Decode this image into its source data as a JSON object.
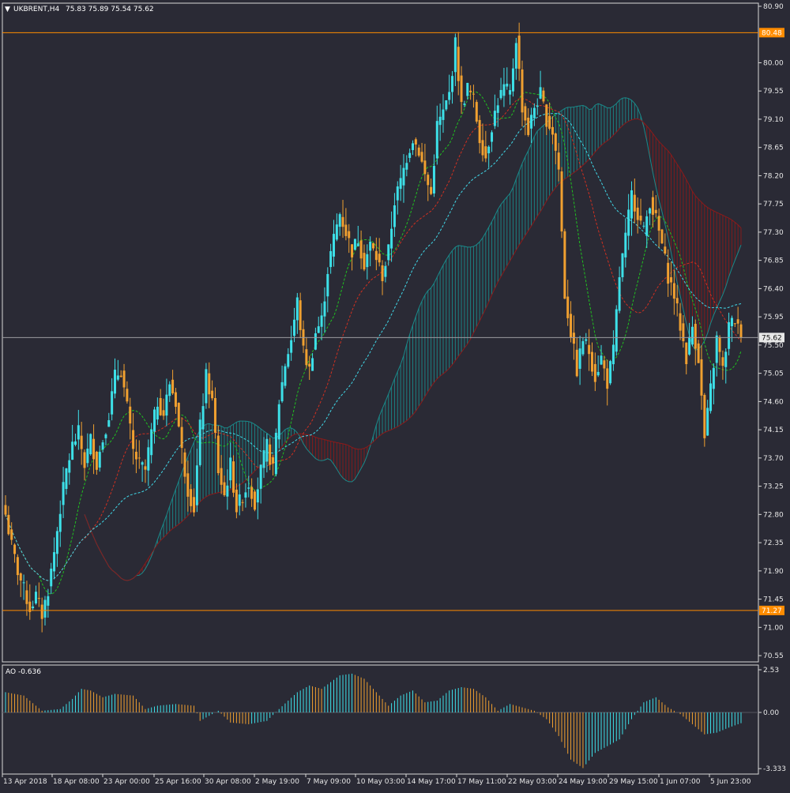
{
  "header": {
    "symbol_label": "UKBRENT,H4",
    "ohlc_text": "75.83 75.89 75.54 75.62"
  },
  "price_axis": {
    "ticks": [
      "80.90",
      "80.00",
      "79.55",
      "79.10",
      "78.65",
      "78.20",
      "77.75",
      "77.30",
      "76.85",
      "76.40",
      "75.95",
      "75.50",
      "75.05",
      "74.60",
      "74.15",
      "73.70",
      "73.25",
      "72.80",
      "72.35",
      "71.90",
      "71.45",
      "71.00",
      "70.55"
    ],
    "level_high": "80.48",
    "level_low": "71.27",
    "last_price": "75.62"
  },
  "ao_panel": {
    "label": "AO -0.636",
    "ticks": [
      "2.53",
      "0.00",
      "-3.333"
    ]
  },
  "time_axis": {
    "labels": [
      "13 Apr 2018",
      "18 Apr 08:00",
      "23 Apr 00:00",
      "25 Apr 16:00",
      "30 Apr 08:00",
      "2 May 19:00",
      "7 May 09:00",
      "10 May 03:00",
      "14 May 17:00",
      "17 May 11:00",
      "22 May 03:00",
      "24 May 19:00",
      "29 May 15:00",
      "1 Jun 07:00",
      "5 Jun 23:00"
    ]
  },
  "colors": {
    "background": "#2a2a35",
    "bull": "#3de0e8",
    "bear": "#f0a030",
    "level_line": "#ff8c00",
    "cloud_bull": "#1a8a8a",
    "cloud_bear": "#8b1a1a",
    "ma_green": "#20c020",
    "ma_red": "#d03020",
    "ma_cyan": "#40d8e8"
  },
  "chart_data": {
    "type": "candlestick",
    "symbol": "UKBRENT",
    "timeframe": "H4",
    "ylim": [
      70.45,
      80.95
    ],
    "price_anchors": [
      [
        0,
        72.8
      ],
      [
        2,
        72.3
      ],
      [
        4,
        71.9
      ],
      [
        6,
        71.6
      ],
      [
        8,
        71.3
      ],
      [
        10,
        71.5
      ],
      [
        12,
        71.2
      ],
      [
        14,
        71.6
      ],
      [
        16,
        72.2
      ],
      [
        18,
        72.9
      ],
      [
        20,
        73.5
      ],
      [
        22,
        73.9
      ],
      [
        24,
        74.1
      ],
      [
        26,
        73.6
      ],
      [
        28,
        74.0
      ],
      [
        30,
        73.6
      ],
      [
        32,
        74.0
      ],
      [
        34,
        74.4
      ],
      [
        36,
        75.0
      ],
      [
        38,
        75.1
      ],
      [
        40,
        74.5
      ],
      [
        42,
        73.8
      ],
      [
        44,
        73.6
      ],
      [
        46,
        73.5
      ],
      [
        48,
        74.1
      ],
      [
        50,
        74.6
      ],
      [
        52,
        74.4
      ],
      [
        54,
        74.9
      ],
      [
        56,
        74.6
      ],
      [
        58,
        73.8
      ],
      [
        60,
        73.2
      ],
      [
        62,
        72.9
      ],
      [
        64,
        74.2
      ],
      [
        66,
        75.0
      ],
      [
        68,
        74.6
      ],
      [
        70,
        73.5
      ],
      [
        72,
        73.1
      ],
      [
        74,
        73.6
      ],
      [
        76,
        72.9
      ],
      [
        78,
        73.1
      ],
      [
        80,
        73.3
      ],
      [
        82,
        73.0
      ],
      [
        84,
        73.5
      ],
      [
        86,
        73.9
      ],
      [
        88,
        73.5
      ],
      [
        90,
        74.6
      ],
      [
        92,
        75.2
      ],
      [
        94,
        75.6
      ],
      [
        96,
        76.2
      ],
      [
        98,
        75.4
      ],
      [
        100,
        75.1
      ],
      [
        102,
        75.7
      ],
      [
        104,
        75.9
      ],
      [
        106,
        76.7
      ],
      [
        108,
        77.2
      ],
      [
        110,
        77.6
      ],
      [
        112,
        77.3
      ],
      [
        114,
        77.0
      ],
      [
        116,
        77.2
      ],
      [
        118,
        76.8
      ],
      [
        120,
        77.1
      ],
      [
        122,
        76.9
      ],
      [
        124,
        76.6
      ],
      [
        126,
        77.0
      ],
      [
        128,
        77.8
      ],
      [
        130,
        78.1
      ],
      [
        132,
        78.5
      ],
      [
        134,
        78.8
      ],
      [
        136,
        78.6
      ],
      [
        138,
        78.2
      ],
      [
        140,
        77.9
      ],
      [
        142,
        79.0
      ],
      [
        144,
        79.2
      ],
      [
        146,
        79.5
      ],
      [
        148,
        80.3
      ],
      [
        150,
        79.3
      ],
      [
        152,
        79.6
      ],
      [
        154,
        79.4
      ],
      [
        156,
        78.8
      ],
      [
        158,
        78.5
      ],
      [
        160,
        79.0
      ],
      [
        162,
        79.4
      ],
      [
        164,
        79.6
      ],
      [
        166,
        79.5
      ],
      [
        168,
        80.4
      ],
      [
        170,
        79.3
      ],
      [
        172,
        78.9
      ],
      [
        174,
        79.3
      ],
      [
        176,
        79.5
      ],
      [
        178,
        79.1
      ],
      [
        180,
        78.9
      ],
      [
        182,
        78.3
      ],
      [
        184,
        76.3
      ],
      [
        186,
        75.7
      ],
      [
        188,
        75.1
      ],
      [
        190,
        75.6
      ],
      [
        192,
        75.4
      ],
      [
        194,
        75.0
      ],
      [
        196,
        75.3
      ],
      [
        198,
        74.9
      ],
      [
        200,
        75.4
      ],
      [
        202,
        76.6
      ],
      [
        204,
        77.2
      ],
      [
        206,
        77.9
      ],
      [
        208,
        77.6
      ],
      [
        210,
        77.3
      ],
      [
        212,
        77.8
      ],
      [
        214,
        77.5
      ],
      [
        216,
        77.1
      ],
      [
        218,
        76.6
      ],
      [
        220,
        76.3
      ],
      [
        222,
        75.8
      ],
      [
        224,
        75.3
      ],
      [
        226,
        75.8
      ],
      [
        228,
        75.3
      ],
      [
        230,
        74.0
      ],
      [
        232,
        74.8
      ],
      [
        234,
        75.6
      ],
      [
        236,
        75.1
      ],
      [
        238,
        75.8
      ],
      [
        240,
        75.9
      ],
      [
        242,
        75.62
      ]
    ],
    "price_levels": [
      80.48,
      71.27
    ],
    "last_price": 75.62,
    "indicator": "Awesome Oscillator",
    "ao_value": -0.636,
    "ao_ylim": [
      -3.333,
      2.53
    ],
    "ao_anchors": [
      [
        0,
        1.2
      ],
      [
        6,
        1.0
      ],
      [
        12,
        0.1
      ],
      [
        18,
        0.2
      ],
      [
        22,
        0.8
      ],
      [
        25,
        1.4
      ],
      [
        28,
        1.3
      ],
      [
        32,
        0.9
      ],
      [
        36,
        1.1
      ],
      [
        42,
        1.0
      ],
      [
        46,
        0.2
      ],
      [
        50,
        0.4
      ],
      [
        56,
        0.5
      ],
      [
        62,
        0.4
      ],
      [
        64,
        -0.5
      ],
      [
        70,
        0.1
      ],
      [
        74,
        -0.6
      ],
      [
        80,
        -0.7
      ],
      [
        86,
        -0.5
      ],
      [
        90,
        0.2
      ],
      [
        96,
        1.2
      ],
      [
        100,
        1.6
      ],
      [
        104,
        1.4
      ],
      [
        110,
        2.2
      ],
      [
        114,
        2.3
      ],
      [
        118,
        2.0
      ],
      [
        122,
        1.2
      ],
      [
        126,
        0.4
      ],
      [
        130,
        1.0
      ],
      [
        134,
        1.3
      ],
      [
        138,
        0.6
      ],
      [
        142,
        0.7
      ],
      [
        146,
        1.3
      ],
      [
        150,
        1.5
      ],
      [
        154,
        1.4
      ],
      [
        158,
        0.9
      ],
      [
        162,
        0.1
      ],
      [
        166,
        0.5
      ],
      [
        170,
        0.3
      ],
      [
        174,
        0.1
      ],
      [
        178,
        -0.4
      ],
      [
        182,
        -1.4
      ],
      [
        186,
        -2.8
      ],
      [
        190,
        -3.3
      ],
      [
        194,
        -2.4
      ],
      [
        198,
        -2.0
      ],
      [
        202,
        -1.6
      ],
      [
        206,
        -0.4
      ],
      [
        210,
        0.6
      ],
      [
        214,
        0.9
      ],
      [
        218,
        0.3
      ],
      [
        222,
        -0.1
      ],
      [
        226,
        -0.7
      ],
      [
        230,
        -1.3
      ],
      [
        234,
        -1.2
      ],
      [
        238,
        -0.9
      ],
      [
        242,
        -0.636
      ]
    ]
  }
}
